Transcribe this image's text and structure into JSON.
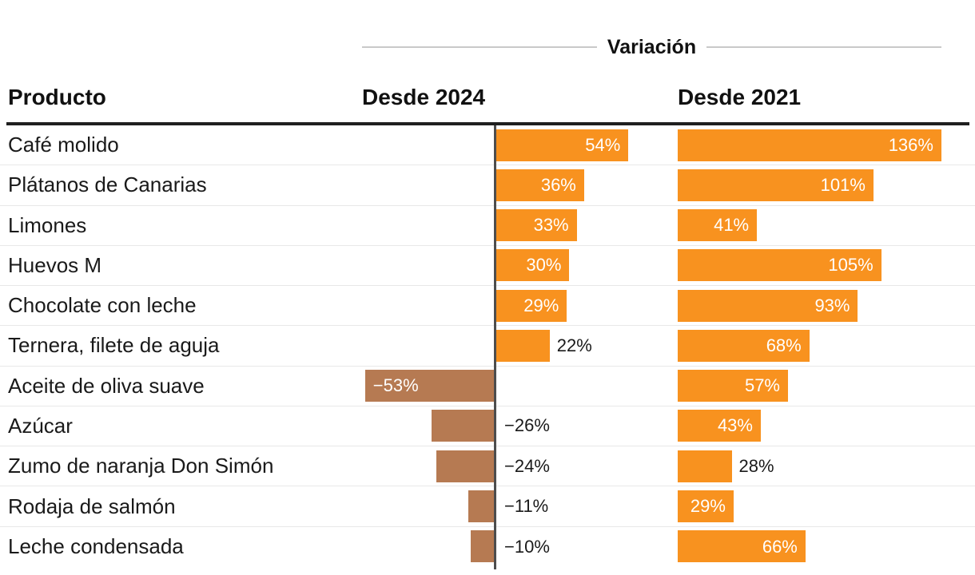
{
  "header": {
    "variation_title": "Variación",
    "producto_label": "Producto",
    "col1_label": "Desde 2024",
    "col2_label": "Desde 2021"
  },
  "colors": {
    "positive_bar": "#F8921F",
    "negative_bar": "#B67A52",
    "label_inside": "#FFFFFF",
    "label_outside": "#1A1A1A",
    "axis_line": "#4D4D4D",
    "row_divider": "#E8E8E8",
    "header_rule": "#1F1F1F",
    "variation_line": "#C9C9C9"
  },
  "chart_data": {
    "type": "bar",
    "orientation": "horizontal",
    "title": "Variación",
    "xlabel": "Producto",
    "ylabel": "",
    "unit": "%",
    "grid": false,
    "legend_position": "column-headers",
    "categories": [
      "Café molido",
      "Plátanos de Canarias",
      "Limones",
      "Huevos M",
      "Chocolate con leche",
      "Ternera, filete de aguja",
      "Aceite de oliva suave",
      "Azúcar",
      "Zumo de naranja Don Simón",
      "Rodaja de salmón",
      "Leche condensada"
    ],
    "series": [
      {
        "name": "Desde 2024",
        "values": [
          54,
          36,
          33,
          30,
          29,
          22,
          -53,
          -26,
          -24,
          -11,
          -10
        ],
        "labels": [
          "54%",
          "36%",
          "33%",
          "30%",
          "29%",
          "22%",
          "−53%",
          "−26%",
          "−24%",
          "−11%",
          "−10%"
        ],
        "label_inside": [
          true,
          true,
          true,
          true,
          true,
          false,
          true,
          false,
          false,
          false,
          false
        ]
      },
      {
        "name": "Desde 2021",
        "values": [
          136,
          101,
          41,
          105,
          93,
          68,
          57,
          43,
          28,
          29,
          66
        ],
        "labels": [
          "136%",
          "101%",
          "41%",
          "105%",
          "93%",
          "68%",
          "57%",
          "43%",
          "28%",
          "29%",
          "66%"
        ],
        "label_inside": [
          true,
          true,
          true,
          true,
          true,
          true,
          true,
          true,
          false,
          true,
          true
        ]
      }
    ]
  }
}
